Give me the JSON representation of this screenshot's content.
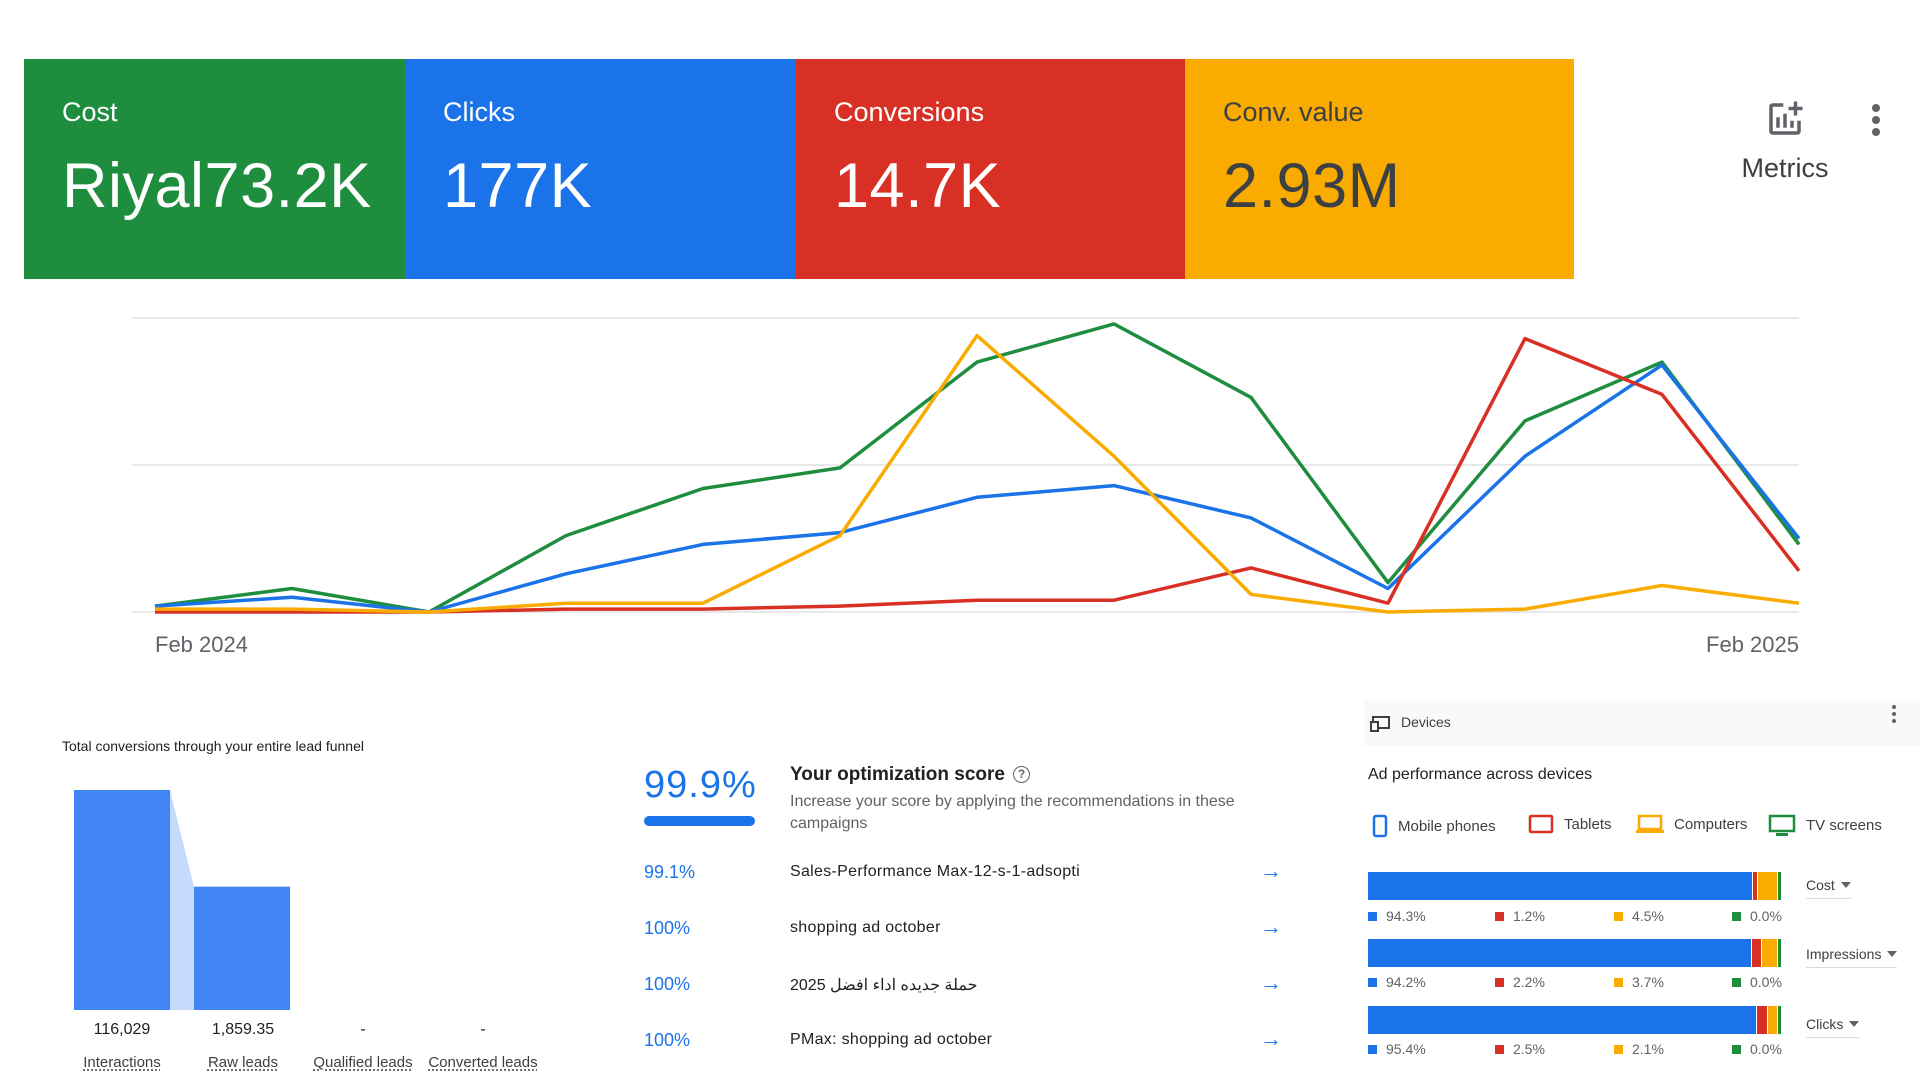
{
  "scorecards": [
    {
      "label": "Cost",
      "value": "Riyal73.2K",
      "color": "#1e8e3e"
    },
    {
      "label": "Clicks",
      "value": "177K",
      "color": "#1a73e8"
    },
    {
      "label": "Conversions",
      "value": "14.7K",
      "color": "#d93025"
    },
    {
      "label": "Conv. value",
      "value": "2.93M",
      "color": "#f9ab00"
    }
  ],
  "metrics_button": {
    "label": "Metrics",
    "icon": "add-chart-icon"
  },
  "chart_data": {
    "type": "line",
    "x_labels": [
      "Feb 2024",
      "Feb 2025"
    ],
    "y_range": [
      0,
      100
    ],
    "grid": true,
    "series": [
      {
        "color": "#1e8e3e",
        "values": [
          2,
          8,
          0,
          26,
          42,
          49,
          85,
          98,
          73,
          10,
          65,
          85,
          23
        ]
      },
      {
        "color": "#1a73e8",
        "values": [
          2,
          5,
          0,
          13,
          23,
          27,
          39,
          43,
          32,
          8,
          53,
          84,
          25
        ]
      },
      {
        "color": "#d93025",
        "values": [
          0,
          0,
          0,
          1,
          1,
          2,
          4,
          4,
          15,
          3,
          93,
          74,
          14
        ]
      },
      {
        "color": "#f9ab00",
        "values": [
          1,
          1,
          0,
          3,
          3,
          26,
          94,
          53,
          6,
          0,
          1,
          9,
          3
        ]
      }
    ]
  },
  "funnel": {
    "title": "Total conversions through your entire lead funnel",
    "stages": [
      {
        "label": "Interactions",
        "value": "116,029",
        "amount": 116029
      },
      {
        "label": "Raw leads",
        "value": "1,859.35",
        "amount": 1859.35
      },
      {
        "label": "Qualified leads",
        "value": "-",
        "amount": 0
      },
      {
        "label": "Converted leads",
        "value": "-",
        "amount": 0
      }
    ]
  },
  "optimization": {
    "score": "99.9%",
    "title": "Your optimization score",
    "subtitle": "Increase your score by applying the recommendations in these campaigns",
    "campaigns": [
      {
        "pct": "99.1%",
        "name": "Sales-Performance Max-12-s-1-adsopti"
      },
      {
        "pct": "100%",
        "name": "shopping ad october"
      },
      {
        "pct": "100%",
        "name": "حملة جديده اداء افضل 2025"
      },
      {
        "pct": "100%",
        "name": "PMax: shopping ad october"
      }
    ]
  },
  "devices": {
    "header": "Devices",
    "title": "Ad performance across devices",
    "legend": [
      {
        "label": "Mobile phones",
        "color": "#1a73e8",
        "icon": "mobile-phone-icon"
      },
      {
        "label": "Tablets",
        "color": "#d93025",
        "icon": "tablet-icon"
      },
      {
        "label": "Computers",
        "color": "#f9ab00",
        "icon": "computer-icon"
      },
      {
        "label": "TV screens",
        "color": "#1e8e3e",
        "icon": "tv-screen-icon"
      }
    ],
    "rows": [
      {
        "metric": "Cost",
        "values": [
          94.3,
          1.2,
          4.5,
          0.0
        ],
        "labels": [
          "94.3%",
          "1.2%",
          "4.5%",
          "0.0%"
        ]
      },
      {
        "metric": "Impressions",
        "values": [
          94.2,
          2.2,
          3.7,
          0.0
        ],
        "labels": [
          "94.2%",
          "2.2%",
          "3.7%",
          "0.0%"
        ]
      },
      {
        "metric": "Clicks",
        "values": [
          95.4,
          2.5,
          2.1,
          0.0
        ],
        "labels": [
          "95.4%",
          "2.5%",
          "2.1%",
          "0.0%"
        ]
      }
    ]
  }
}
